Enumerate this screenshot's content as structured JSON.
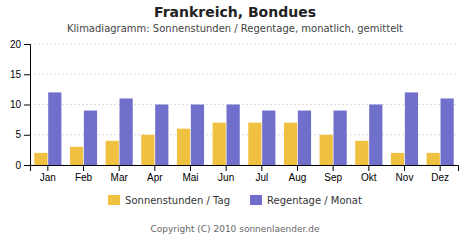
{
  "chart_data": {
    "type": "bar",
    "title": "Frankreich, Bondues",
    "subtitle": "Klimadiagramm: Sonnenstunden / Regentage, monatlich, gemittelt",
    "annotations": [
      "Copyright (C) 2010 sonnenlaender.de"
    ],
    "categories": [
      "Jan",
      "Feb",
      "Mar",
      "Apr",
      "Mai",
      "Jun",
      "Jul",
      "Aug",
      "Sep",
      "Okt",
      "Nov",
      "Dez"
    ],
    "series": [
      {
        "name": "Sonnenstunden / Tag",
        "color": "#F0C040",
        "values": [
          2,
          3,
          4,
          5,
          6,
          7,
          7,
          7,
          5,
          4,
          2,
          2
        ]
      },
      {
        "name": "Regentage / Monat",
        "color": "#7070CC",
        "values": [
          12,
          9,
          11,
          10,
          10,
          10,
          9,
          9,
          9,
          10,
          12,
          11
        ]
      }
    ],
    "ylim": [
      0,
      20
    ],
    "yticks": [
      0,
      5,
      10,
      15,
      20
    ],
    "grid": true,
    "legend": "bottom"
  }
}
